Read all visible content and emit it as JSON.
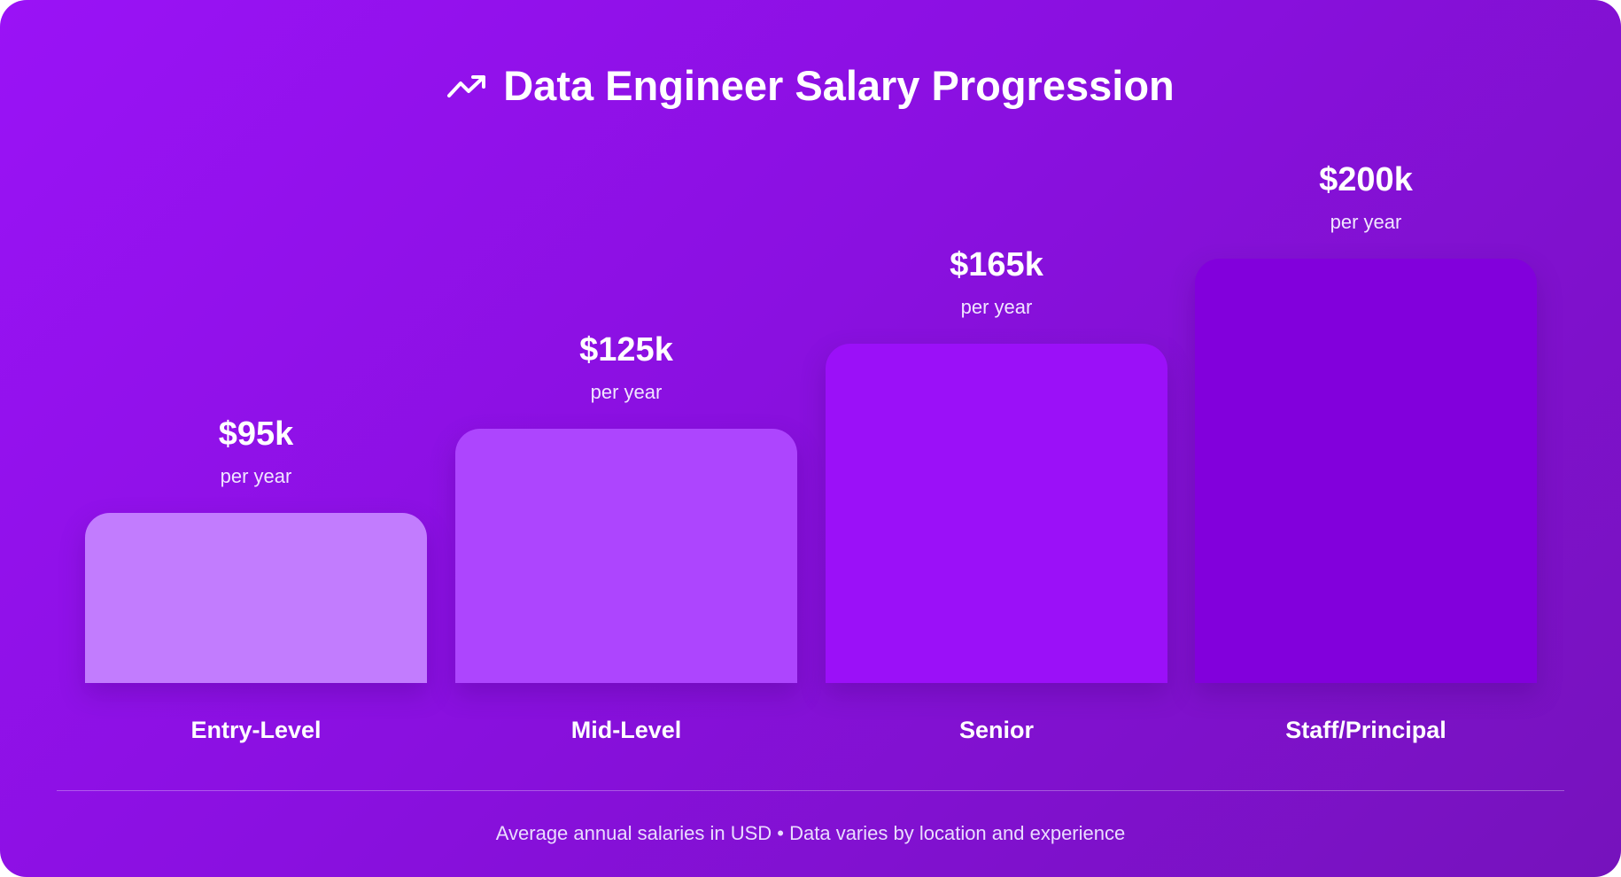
{
  "title": "Data Engineer Salary Progression",
  "title_icon": "trending-up-icon",
  "footer": "Average annual salaries in USD • Data varies by location and experience",
  "colors": {
    "background_start": "#9a12f6",
    "background_end": "#7612bc",
    "bars": [
      "#c27cfe",
      "#ad45fe",
      "#9b10f8",
      "#8200dc"
    ]
  },
  "chart_data": {
    "type": "bar",
    "title": "Data Engineer Salary Progression",
    "categories": [
      "Entry-Level",
      "Mid-Level",
      "Senior",
      "Staff/Principal"
    ],
    "values": [
      95,
      125,
      165,
      200
    ],
    "value_labels": [
      "$95k",
      "$125k",
      "$165k",
      "$200k"
    ],
    "value_sublabel": "per year",
    "unit": "thousand USD per year",
    "grid": false,
    "legend": "none"
  }
}
